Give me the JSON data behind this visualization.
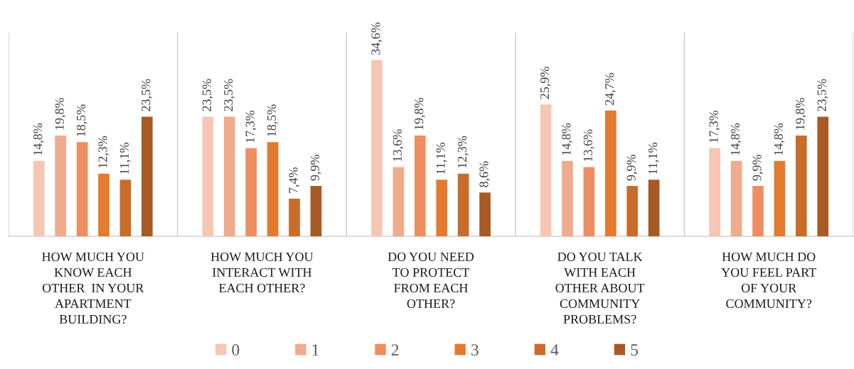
{
  "chart_data": {
    "type": "bar",
    "categories": [
      "HOW MUCH YOU\nKNOW EACH\nOTHER  IN YOUR\nAPARTMENT\nBUILDING?",
      "HOW MUCH YOU\nINTERACT WITH\nEACH OTHER?",
      "DO YOU NEED\nTO PROTECT\nFROM EACH\nOTHER?",
      "DO YOU TALK\nWITH EACH\nOTHER ABOUT\nCOMMUNITY\nPROBLEMS?",
      "HOW MUCH DO\nYOU FEEL PART\nOF YOUR\nCOMMUNITY?"
    ],
    "series": [
      {
        "name": "0",
        "color": "#f5c6b3",
        "values": [
          14.8,
          23.5,
          34.6,
          25.9,
          17.3
        ],
        "value_labels": [
          "14,8%",
          "23,5%",
          "34,6%",
          "25,9%",
          "17,3%"
        ]
      },
      {
        "name": "1",
        "color": "#f0aa8c",
        "values": [
          19.8,
          23.5,
          13.6,
          14.8,
          14.8
        ],
        "value_labels": [
          "19,8%",
          "23,5%",
          "13,6%",
          "14,8%",
          "14,8%"
        ]
      },
      {
        "name": "2",
        "color": "#ed8e60",
        "values": [
          18.5,
          17.3,
          19.8,
          13.6,
          9.9
        ],
        "value_labels": [
          "18,5%",
          "17,3%",
          "19,8%",
          "13,6%",
          "9,9%"
        ]
      },
      {
        "name": "3",
        "color": "#e37a2e",
        "values": [
          12.3,
          18.5,
          11.1,
          24.7,
          14.8
        ],
        "value_labels": [
          "12,3%",
          "18,5%",
          "11,1%",
          "24,7%",
          "14,8%"
        ]
      },
      {
        "name": "4",
        "color": "#c86c2a",
        "values": [
          11.1,
          7.4,
          12.3,
          9.9,
          19.8
        ],
        "value_labels": [
          "11,1%",
          "7,4%",
          "12,3%",
          "9,9%",
          "19,8%"
        ]
      },
      {
        "name": "5",
        "color": "#a85a24",
        "values": [
          23.5,
          9.9,
          8.6,
          11.1,
          23.5
        ],
        "value_labels": [
          "23,5%",
          "9,9%",
          "8,6%",
          "11,1%",
          "23,5%"
        ]
      }
    ],
    "ylim": [
      0,
      40
    ],
    "grid": "x",
    "legend": "bottom",
    "tick_labels": "x"
  }
}
